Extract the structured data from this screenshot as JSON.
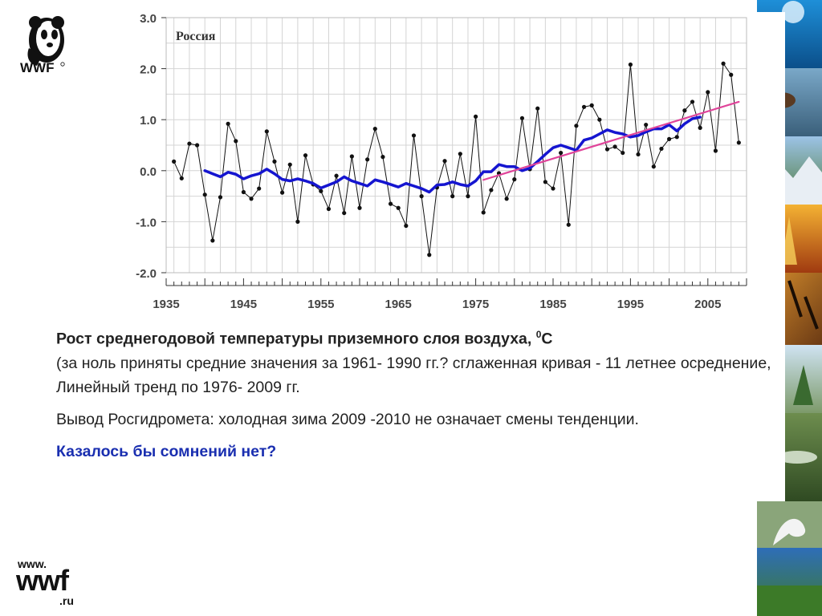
{
  "logo": {
    "text": "WWF"
  },
  "chart_data": {
    "type": "line",
    "title": "Россия",
    "ylim": [
      -2.0,
      3.0
    ],
    "xlim": [
      1935,
      2010
    ],
    "y_ticks": [
      "3.0",
      "2.0",
      "1.0",
      "0.0",
      "-1.0",
      "-2.0"
    ],
    "x_ticks": [
      "1935",
      "1945",
      "1955",
      "1965",
      "1975",
      "1985",
      "1995",
      "2005"
    ],
    "x_tick_values": [
      1935,
      1945,
      1955,
      1965,
      1975,
      1985,
      1995,
      2005
    ],
    "y_tick_values": [
      3,
      2,
      1,
      0,
      -1,
      -2
    ],
    "grid": true,
    "series": [
      {
        "color": "#111111",
        "x": [
          1936,
          1937,
          1938,
          1939,
          1940,
          1941,
          1942,
          1943,
          1944,
          1945,
          1946,
          1947,
          1948,
          1949,
          1950,
          1951,
          1952,
          1953,
          1954,
          1955,
          1956,
          1957,
          1958,
          1959,
          1960,
          1961,
          1962,
          1963,
          1964,
          1965,
          1966,
          1967,
          1968,
          1969,
          1970,
          1971,
          1972,
          1973,
          1974,
          1975,
          1976,
          1977,
          1978,
          1979,
          1980,
          1981,
          1982,
          1983,
          1984,
          1985,
          1986,
          1987,
          1988,
          1989,
          1990,
          1991,
          1992,
          1993,
          1994,
          1995,
          1996,
          1997,
          1998,
          1999,
          2000,
          2001,
          2002,
          2003,
          2004,
          2005,
          2006,
          2007,
          2008,
          2009
        ],
        "values": [
          0.18,
          -0.15,
          0.53,
          0.5,
          -0.47,
          -1.37,
          -0.52,
          0.92,
          0.58,
          -0.42,
          -0.55,
          -0.35,
          0.77,
          0.18,
          -0.43,
          0.12,
          -1.0,
          0.3,
          -0.27,
          -0.4,
          -0.75,
          -0.1,
          -0.83,
          0.28,
          -0.73,
          0.22,
          0.82,
          0.27,
          -0.65,
          -0.73,
          -1.08,
          0.69,
          -0.5,
          -1.65,
          -0.33,
          0.19,
          -0.5,
          0.33,
          -0.5,
          1.06,
          -0.82,
          -0.38,
          -0.05,
          -0.55,
          -0.17,
          1.03,
          0.03,
          1.22,
          -0.22,
          -0.35,
          0.35,
          -1.06,
          0.88,
          1.25,
          1.28,
          1.0,
          0.42,
          0.47,
          0.35,
          2.08,
          0.32,
          0.9,
          0.08,
          0.43,
          0.62,
          0.66,
          1.18,
          1.35,
          0.84,
          1.54,
          0.39,
          2.1,
          1.88,
          0.55
        ]
      },
      {
        "color": "#1515d0",
        "x": [
          1940,
          1941,
          1942,
          1943,
          1944,
          1945,
          1946,
          1947,
          1948,
          1949,
          1950,
          1951,
          1952,
          1953,
          1954,
          1955,
          1956,
          1957,
          1958,
          1959,
          1960,
          1961,
          1962,
          1963,
          1964,
          1965,
          1966,
          1967,
          1968,
          1969,
          1970,
          1971,
          1972,
          1973,
          1974,
          1975,
          1976,
          1977,
          1978,
          1979,
          1980,
          1981,
          1982,
          1983,
          1984,
          1985,
          1986,
          1987,
          1988,
          1989,
          1990,
          1991,
          1992,
          1993,
          1994,
          1995,
          1996,
          1997,
          1998,
          1999,
          2000,
          2001,
          2002,
          2003,
          2004
        ],
        "values": [
          0.0,
          -0.06,
          -0.12,
          -0.03,
          -0.07,
          -0.16,
          -0.1,
          -0.06,
          0.03,
          -0.06,
          -0.17,
          -0.2,
          -0.16,
          -0.2,
          -0.25,
          -0.34,
          -0.28,
          -0.22,
          -0.12,
          -0.2,
          -0.25,
          -0.3,
          -0.18,
          -0.22,
          -0.27,
          -0.32,
          -0.25,
          -0.3,
          -0.35,
          -0.42,
          -0.28,
          -0.27,
          -0.22,
          -0.27,
          -0.3,
          -0.2,
          -0.02,
          -0.02,
          0.12,
          0.08,
          0.08,
          0.0,
          0.05,
          0.18,
          0.32,
          0.45,
          0.5,
          0.45,
          0.4,
          0.6,
          0.64,
          0.72,
          0.8,
          0.75,
          0.72,
          0.66,
          0.69,
          0.76,
          0.82,
          0.82,
          0.9,
          0.78,
          0.92,
          1.02,
          1.05
        ]
      },
      {
        "color": "#e0449a",
        "x": [
          1976,
          2009
        ],
        "values": [
          -0.18,
          1.35
        ]
      }
    ]
  },
  "caption": {
    "line1_bold": "Рост среднегодовой температуры приземного слоя воздуха, ",
    "line1_sup": "0",
    "line1_unit": "C",
    "line2": "(за ноль приняты средние значения за 1961- 1990 гг.? сглаженная кривая - 11 летнее осреднение, Линейный тренд по 1976- 2009 гг.",
    "conclusion": "Вывод Росгидромета: холодная зима 2009 -2010 не означает смены тенденции.",
    "question": "Казалось бы сомнений нет?"
  },
  "footer": {
    "www": "www.",
    "wwf": "wwf",
    "ru": ".ru"
  }
}
